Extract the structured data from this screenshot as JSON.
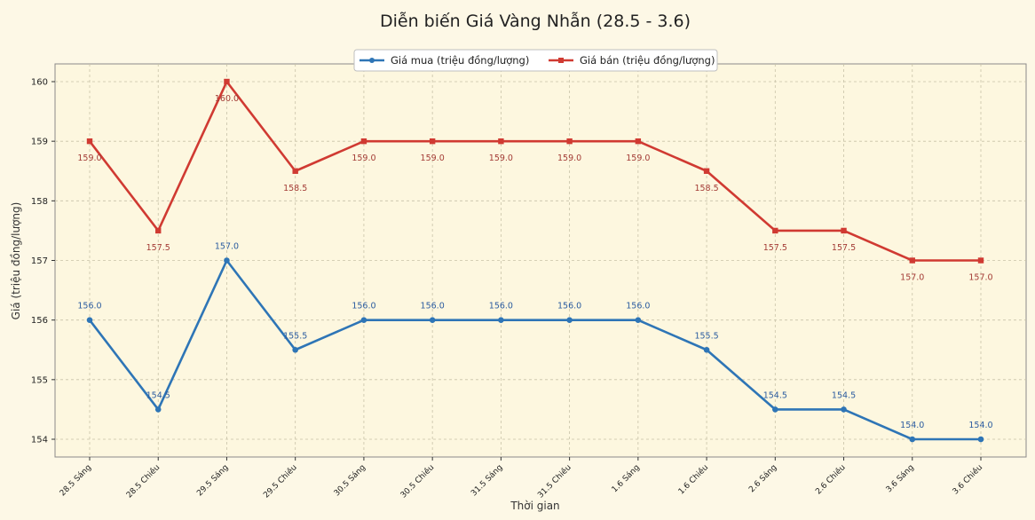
{
  "chart_data": {
    "type": "line",
    "title": "Diễn biến Giá Vàng Nhẫn (28.5 - 3.6)",
    "xlabel": "Thời gian",
    "ylabel": "Giá (triệu đồng/lượng)",
    "categories": [
      "28.5 Sáng",
      "28.5 Chiều",
      "29.5 Sáng",
      "29.5 Chiều",
      "30.5 Sáng",
      "30.5 Chiều",
      "31.5 Sáng",
      "31.5 Chiều",
      "1.6 Sáng",
      "1.6 Chiều",
      "2.6 Sáng",
      "2.6 Chiều",
      "3.6 Sáng",
      "3.6 Chiều"
    ],
    "series": [
      {
        "name": "Giá mua (triệu đồng/lượng)",
        "color": "#2e75b6",
        "marker": "circle",
        "values": [
          156.0,
          154.5,
          157.0,
          155.5,
          156.0,
          156.0,
          156.0,
          156.0,
          156.0,
          155.5,
          154.5,
          154.5,
          154.0,
          154.0
        ]
      },
      {
        "name": "Giá bán (triệu đồng/lượng)",
        "color": "#d03a32",
        "marker": "square",
        "values": [
          159.0,
          157.5,
          160.0,
          158.5,
          159.0,
          159.0,
          159.0,
          159.0,
          159.0,
          158.5,
          157.5,
          157.5,
          157.0,
          157.0
        ]
      }
    ],
    "yticks": [
      154,
      155,
      156,
      157,
      158,
      159,
      160
    ],
    "ylim": [
      153.8,
      160.3
    ],
    "grid": true,
    "legend_position": "top-center"
  }
}
